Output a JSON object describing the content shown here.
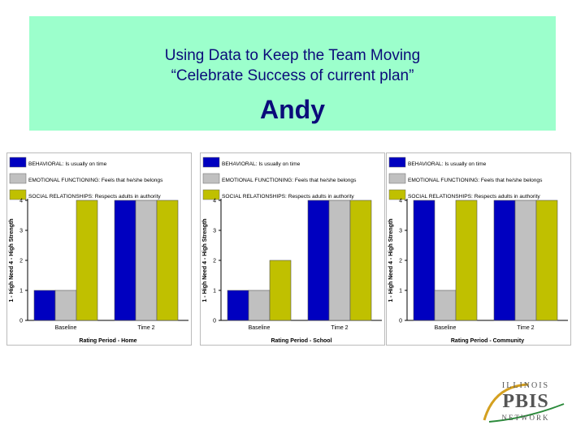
{
  "slide": {
    "title_line1": "Using Data to Keep the Team Moving",
    "title_line2": "“Celebrate Success of current plan”",
    "name": "Andy"
  },
  "logo": {
    "top": "ILLINOIS",
    "mid": "PBIS",
    "bottom": "NETWORK"
  },
  "colors": {
    "title_bg": "#9cffcc",
    "title_text": "#0b0b7a",
    "series": [
      "#0000c0",
      "#c0c0c0",
      "#c0c000"
    ]
  },
  "chart_data": [
    {
      "type": "bar",
      "categories": [
        "Baseline",
        "Time 2"
      ],
      "series": [
        {
          "name": "BEHAVIORAL: Is usually on time",
          "values": [
            1,
            4
          ]
        },
        {
          "name": "EMOTIONAL FUNCTIONING: Feels that he/she belongs",
          "values": [
            1,
            4
          ]
        },
        {
          "name": "SOCIAL RELATIONSHIPS: Respects adults in authority",
          "values": [
            4,
            4
          ]
        }
      ],
      "xlabel": "Rating Period - Home",
      "ylabel": "1 - High Need 4 - High Strength",
      "yticks": [
        "0",
        "1",
        "2",
        "3",
        "4"
      ],
      "ylim": [
        0,
        4
      ],
      "legend": "top"
    },
    {
      "type": "bar",
      "categories": [
        "Baseline",
        "Time 2"
      ],
      "series": [
        {
          "name": "BEHAVIORAL: Is usually on time",
          "values": [
            1,
            4
          ]
        },
        {
          "name": "EMOTIONAL FUNCTIONING: Feels that he/she belongs",
          "values": [
            1,
            4
          ]
        },
        {
          "name": "SOCIAL RELATIONSHIPS: Respects adults in authority",
          "values": [
            2,
            4
          ]
        }
      ],
      "xlabel": "Rating Period - School",
      "ylabel": "1 - High Need 4 - High Strength",
      "yticks": [
        "0",
        "1",
        "2",
        "3",
        "4"
      ],
      "ylim": [
        0,
        4
      ],
      "legend": "top"
    },
    {
      "type": "bar",
      "categories": [
        "Baseline",
        "Time 2"
      ],
      "series": [
        {
          "name": "BEHAVIORAL: Is usually on time",
          "values": [
            4,
            4
          ]
        },
        {
          "name": "EMOTIONAL FUNCTIONING: Feels that he/she belongs",
          "values": [
            1,
            4
          ]
        },
        {
          "name": "SOCIAL RELATIONSHIPS: Respects adults in authority",
          "values": [
            4,
            4
          ]
        }
      ],
      "xlabel": "Rating Period - Community",
      "ylabel": "1 - High Need 4 - High Strength",
      "yticks": [
        "0",
        "1",
        "2",
        "3",
        "4"
      ],
      "ylim": [
        0,
        4
      ],
      "legend": "top"
    }
  ]
}
